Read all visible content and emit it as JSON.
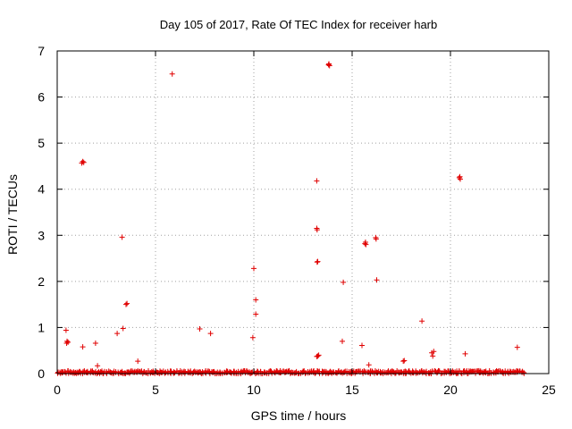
{
  "chart_data": {
    "type": "scatter",
    "title": "Day 105 of 2017, Rate Of TEC Index for receiver harb",
    "xlabel": "GPS time / hours",
    "ylabel": "ROTI / TECUs",
    "xlim": [
      0,
      25
    ],
    "ylim": [
      0,
      7
    ],
    "xticks": [
      0,
      5,
      10,
      15,
      20,
      25
    ],
    "xtick_labels": [
      "0",
      "5",
      "10",
      "15",
      "20",
      "25"
    ],
    "yticks": [
      0,
      1,
      2,
      3,
      4,
      5,
      6,
      7
    ],
    "ytick_labels": [
      "0",
      "1",
      "2",
      "3",
      "4",
      "5",
      "6",
      "7"
    ],
    "grid": true,
    "grid_style": "dotted",
    "marker": "+",
    "color": "#e00000",
    "series": [
      {
        "values": [
          [
            0.45,
            0.94
          ],
          [
            0.5,
            0.7
          ],
          [
            0.55,
            0.68
          ],
          [
            0.48,
            0.66
          ],
          [
            1.3,
            0.58
          ],
          [
            1.3,
            4.6
          ],
          [
            1.25,
            4.57
          ],
          [
            1.35,
            4.58
          ],
          [
            1.95,
            0.66
          ],
          [
            2.05,
            0.17
          ],
          [
            3.05,
            0.87
          ],
          [
            3.3,
            2.96
          ],
          [
            3.35,
            0.98
          ],
          [
            3.5,
            1.5
          ],
          [
            3.55,
            1.52
          ],
          [
            4.1,
            0.27
          ],
          [
            5.85,
            6.5
          ],
          [
            7.25,
            0.97
          ],
          [
            7.8,
            0.87
          ],
          [
            9.95,
            0.78
          ],
          [
            10.0,
            2.28
          ],
          [
            10.1,
            1.6
          ],
          [
            10.1,
            1.29
          ],
          [
            13.2,
            4.18
          ],
          [
            13.2,
            3.15
          ],
          [
            13.22,
            3.12
          ],
          [
            13.22,
            2.42
          ],
          [
            13.25,
            2.43
          ],
          [
            13.2,
            0.37
          ],
          [
            13.25,
            0.38
          ],
          [
            13.3,
            0.4
          ],
          [
            13.8,
            6.7
          ],
          [
            13.85,
            6.68
          ],
          [
            13.82,
            6.72
          ],
          [
            14.55,
            1.98
          ],
          [
            14.5,
            0.7
          ],
          [
            15.5,
            0.61
          ],
          [
            15.85,
            0.19
          ],
          [
            15.65,
            2.82
          ],
          [
            15.7,
            2.8
          ],
          [
            15.68,
            2.85
          ],
          [
            16.2,
            2.95
          ],
          [
            16.22,
            2.92
          ],
          [
            16.25,
            2.03
          ],
          [
            17.6,
            0.27
          ],
          [
            17.65,
            0.28
          ],
          [
            18.55,
            1.14
          ],
          [
            19.05,
            0.45
          ],
          [
            19.1,
            0.38
          ],
          [
            19.15,
            0.48
          ],
          [
            20.45,
            4.25
          ],
          [
            20.5,
            4.22
          ],
          [
            20.48,
            4.27
          ],
          [
            20.75,
            0.43
          ],
          [
            21.45,
            0.06
          ],
          [
            23.4,
            0.57
          ]
        ],
        "baseline_band": {
          "x_range": [
            0,
            23.7
          ],
          "y_range": [
            0.0,
            0.06
          ],
          "note": "dense points near zero"
        }
      }
    ]
  }
}
